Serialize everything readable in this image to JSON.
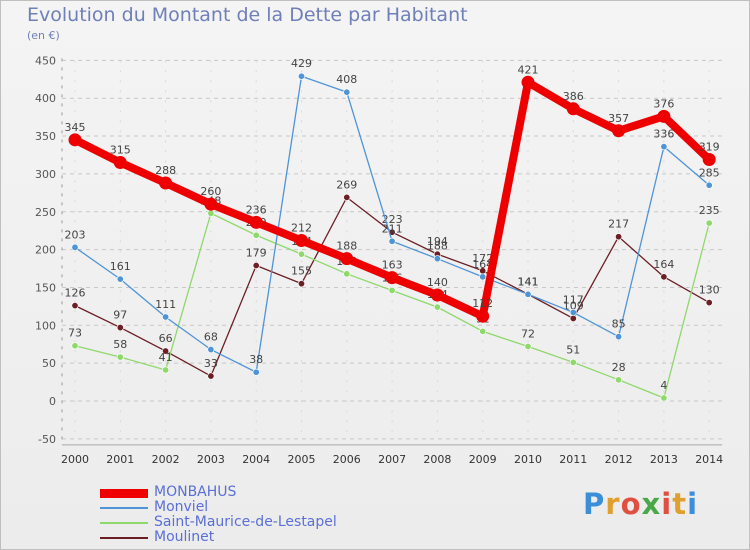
{
  "header": {
    "title": "Evolution du Montant de la Dette par Habitant",
    "subtitle": "(en €)"
  },
  "logo": {
    "text": "Proxiti",
    "letter_colors": [
      "#3a8fd8",
      "#e0a030",
      "#e05040",
      "#4aa84a",
      "#e05040",
      "#e0a030",
      "#3a8fd8"
    ]
  },
  "chart_data": {
    "type": "line",
    "title": "Evolution du Montant de la Dette par Habitant",
    "subtitle": "(en €)",
    "x": [
      "2000",
      "2001",
      "2002",
      "2003",
      "2004",
      "2005",
      "2006",
      "2007",
      "2008",
      "2009",
      "2010",
      "2011",
      "2012",
      "2013",
      "2014"
    ],
    "ylim": [
      -50,
      450
    ],
    "yticks": [
      "-50",
      "0",
      "50",
      "100",
      "150",
      "200",
      "250",
      "300",
      "350",
      "400",
      "450"
    ],
    "grid": "dashed-horizontal",
    "legend_position": "bottom-left",
    "series": [
      {
        "name": "Moulinet",
        "color": "#6b1f24",
        "width": "thin",
        "values": [
          126,
          97,
          66,
          33,
          179,
          155,
          269,
          223,
          194,
          172,
          141,
          109,
          217,
          164,
          130
        ],
        "labels": [
          "126",
          "97",
          "66",
          "33",
          "179",
          "155",
          "269",
          "223",
          "194",
          "172",
          "141",
          "109",
          "217",
          "164",
          "130"
        ]
      },
      {
        "name": "Saint-Maurice-de-Lestapel",
        "color": "#8fd86b",
        "width": "thin",
        "values": [
          73,
          58,
          41,
          248,
          219,
          194,
          168,
          146,
          124,
          92,
          72,
          51,
          28,
          4,
          235
        ],
        "labels": [
          "73",
          "58",
          "41",
          "248",
          "219",
          "194",
          "168",
          "146",
          "124",
          "92",
          "72",
          "51",
          "28",
          "4",
          "235"
        ]
      },
      {
        "name": "Monviel",
        "color": "#4f94d6",
        "width": "thin",
        "values": [
          203,
          161,
          111,
          68,
          38,
          429,
          408,
          211,
          188,
          164,
          141,
          117,
          85,
          336,
          285
        ],
        "labels": [
          "203",
          "161",
          "111",
          "68",
          "38",
          "429",
          "408",
          "211",
          "188",
          "164",
          "141",
          "117",
          "85",
          "336",
          "285"
        ]
      },
      {
        "name": "MONBAHUS",
        "color": "#ee0000",
        "width": "thick",
        "values": [
          345,
          315,
          288,
          260,
          236,
          212,
          188,
          163,
          140,
          112,
          421,
          386,
          357,
          376,
          319
        ],
        "labels": [
          "345",
          "315",
          "288",
          "260",
          "236",
          "212",
          "188",
          "163",
          "140",
          "112",
          "421",
          "386",
          "357",
          "376",
          "319"
        ]
      }
    ],
    "legend_order": [
      "MONBAHUS",
      "Monviel",
      "Saint-Maurice-de-Lestapel",
      "Moulinet"
    ]
  }
}
